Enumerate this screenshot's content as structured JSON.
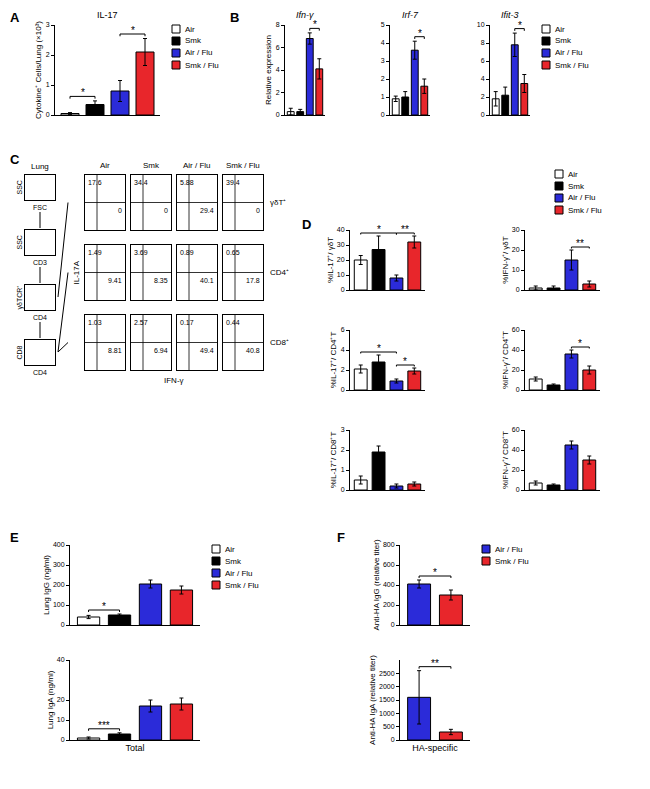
{
  "chart_data": [
    {
      "type": "bar",
      "panel_label": "A",
      "title": "IL-17",
      "y_label": "Cytokine⁺ Cells/Lung (×10³)",
      "categories": [
        "Air",
        "Smk",
        "Air / Flu",
        "Smk / Flu"
      ],
      "values": [
        0.05,
        0.35,
        0.8,
        2.1
      ],
      "errors": [
        0.03,
        0.12,
        0.35,
        0.45
      ],
      "colors": [
        "#ffffff",
        "#000000",
        "#2b2bd9",
        "#e8262b"
      ],
      "ylim": [
        0,
        3
      ],
      "yticks": [
        0,
        1,
        2,
        3
      ],
      "tick_labels": "y",
      "legend": "right",
      "significance": [
        {
          "from": 0,
          "to": 1,
          "text": "*"
        },
        {
          "from": 2,
          "to": 3,
          "text": "*"
        }
      ]
    },
    {
      "type": "bar",
      "panel_label": "B",
      "title": "Ifn-γ",
      "y_label": "Relative expression",
      "categories": [
        "Air",
        "Smk",
        "Air / Flu",
        "Smk / Flu"
      ],
      "values": [
        0.3,
        0.3,
        6.8,
        4.1
      ],
      "errors": [
        0.3,
        0.2,
        0.5,
        0.9
      ],
      "colors": [
        "#ffffff",
        "#000000",
        "#2b2bd9",
        "#e8262b"
      ],
      "ylim": [
        0,
        8
      ],
      "yticks": [
        0,
        2,
        4,
        6,
        8
      ],
      "tick_labels": "y",
      "significance": [
        {
          "from": 2,
          "to": 3,
          "text": "*"
        }
      ]
    },
    {
      "type": "bar",
      "title": "Irf-7",
      "categories": [
        "Air",
        "Smk",
        "Air / Flu",
        "Smk / Flu"
      ],
      "values": [
        0.9,
        1.0,
        3.6,
        1.6
      ],
      "errors": [
        0.15,
        0.3,
        0.5,
        0.4
      ],
      "colors": [
        "#ffffff",
        "#000000",
        "#2b2bd9",
        "#e8262b"
      ],
      "ylim": [
        0,
        5
      ],
      "yticks": [
        0,
        1,
        2,
        3,
        4,
        5
      ],
      "tick_labels": "y",
      "significance": [
        {
          "from": 2,
          "to": 3,
          "text": "*"
        }
      ]
    },
    {
      "type": "bar",
      "title": "Ifit-3",
      "categories": [
        "Air",
        "Smk",
        "Air / Flu",
        "Smk / Flu"
      ],
      "values": [
        1.8,
        2.2,
        7.8,
        3.5
      ],
      "errors": [
        0.8,
        0.9,
        1.3,
        1.0
      ],
      "colors": [
        "#ffffff",
        "#000000",
        "#2b2bd9",
        "#e8262b"
      ],
      "ylim": [
        0,
        10
      ],
      "yticks": [
        0,
        2,
        4,
        6,
        8,
        10
      ],
      "tick_labels": "y",
      "legend": "right",
      "significance": [
        {
          "from": 2,
          "to": 3,
          "text": "*"
        }
      ]
    },
    {
      "type": "flow_grid",
      "panel_label": "C",
      "columns": [
        "Air",
        "Smk",
        "Air / Flu",
        "Smk / Flu"
      ],
      "rows": [
        "γδT⁺",
        "CD4⁺",
        "CD8⁺"
      ],
      "x_label": "IFN-γ",
      "y_label": "IL-17A",
      "tick_labels": false,
      "cells": [
        [
          {
            "il17a": 17.6,
            "ifng": 0
          },
          {
            "il17a": 34.4,
            "ifng": 0
          },
          {
            "il17a": 5.88,
            "ifng": 29.4
          },
          {
            "il17a": 39.4,
            "ifng": 0
          }
        ],
        [
          {
            "il17a": 1.49,
            "ifng": 9.41
          },
          {
            "il17a": 3.69,
            "ifng": 8.35
          },
          {
            "il17a": 0.89,
            "ifng": 40.1
          },
          {
            "il17a": 0.65,
            "ifng": 17.8
          }
        ],
        [
          {
            "il17a": 1.03,
            "ifng": 8.81
          },
          {
            "il17a": 2.57,
            "ifng": 6.94
          },
          {
            "il17a": 0.17,
            "ifng": 49.4
          },
          {
            "il17a": 0.44,
            "ifng": 40.8
          }
        ]
      ],
      "gating": [
        {
          "title": "Lung",
          "x_label": "FSC",
          "y_label": "SSC"
        },
        {
          "x_label": "CD3",
          "y_label": "SSC"
        },
        {
          "x_label": "CD4",
          "y_label": "γδTCR⁺"
        },
        {
          "x_label": "CD4",
          "y_label": "CD8"
        }
      ]
    },
    {
      "type": "bar",
      "panel_label": "D",
      "y_label": "%IL-17⁺/ γδT",
      "categories": [
        "Air",
        "Smk",
        "Air / Flu",
        "Smk / Flu"
      ],
      "values": [
        20,
        27,
        8,
        32
      ],
      "errors": [
        3,
        9,
        2,
        4
      ],
      "colors": [
        "#ffffff",
        "#000000",
        "#2b2bd9",
        "#e8262b"
      ],
      "ylim": [
        0,
        40
      ],
      "yticks": [
        0,
        10,
        20,
        30,
        40
      ],
      "tick_labels": "y",
      "significance": [
        {
          "from": 0,
          "to": 2,
          "text": "*"
        },
        {
          "from": 2,
          "to": 3,
          "text": "**"
        }
      ]
    },
    {
      "type": "bar",
      "y_label": "%IFN-γ⁺/ γδT",
      "categories": [
        "Air",
        "Smk",
        "Air / Flu",
        "Smk / Flu"
      ],
      "values": [
        1,
        1,
        15,
        3
      ],
      "errors": [
        1,
        1,
        5,
        1.5
      ],
      "colors": [
        "#ffffff",
        "#000000",
        "#2b2bd9",
        "#e8262b"
      ],
      "ylim": [
        0,
        30
      ],
      "yticks": [
        0,
        10,
        20,
        30
      ],
      "tick_labels": "y",
      "legend": "top right",
      "significance": [
        {
          "from": 2,
          "to": 3,
          "text": "**"
        }
      ]
    },
    {
      "type": "bar",
      "y_label": "%IL-17⁺/ CD4⁺T",
      "categories": [
        "Air",
        "Smk",
        "Air / Flu",
        "Smk / Flu"
      ],
      "values": [
        2.1,
        2.8,
        0.9,
        1.9
      ],
      "errors": [
        0.4,
        0.7,
        0.2,
        0.3
      ],
      "colors": [
        "#ffffff",
        "#000000",
        "#2b2bd9",
        "#e8262b"
      ],
      "ylim": [
        0,
        6
      ],
      "yticks": [
        0,
        2,
        4,
        6
      ],
      "tick_labels": "y",
      "significance": [
        {
          "from": 0,
          "to": 2,
          "text": "*"
        },
        {
          "from": 2,
          "to": 3,
          "text": "*"
        }
      ]
    },
    {
      "type": "bar",
      "y_label": "%IFN-γ⁺/ CD4⁺T",
      "categories": [
        "Air",
        "Smk",
        "Air / Flu",
        "Smk / Flu"
      ],
      "values": [
        11,
        5,
        36,
        20
      ],
      "errors": [
        2,
        1,
        4,
        4
      ],
      "colors": [
        "#ffffff",
        "#000000",
        "#2b2bd9",
        "#e8262b"
      ],
      "ylim": [
        0,
        60
      ],
      "yticks": [
        0,
        20,
        40,
        60
      ],
      "tick_labels": "y",
      "significance": [
        {
          "from": 2,
          "to": 3,
          "text": "*"
        }
      ]
    },
    {
      "type": "bar",
      "y_label": "%IL-17⁺/ CD8⁺T",
      "categories": [
        "Air",
        "Smk",
        "Air / Flu",
        "Smk / Flu"
      ],
      "values": [
        0.5,
        1.9,
        0.2,
        0.3
      ],
      "errors": [
        0.2,
        0.3,
        0.1,
        0.1
      ],
      "colors": [
        "#ffffff",
        "#000000",
        "#2b2bd9",
        "#e8262b"
      ],
      "ylim": [
        0,
        3
      ],
      "yticks": [
        0,
        1,
        2,
        3
      ],
      "tick_labels": "y"
    },
    {
      "type": "bar",
      "y_label": "%IFN-γ⁺/ CD8⁺T",
      "categories": [
        "Air",
        "Smk",
        "Air / Flu",
        "Smk / Flu"
      ],
      "values": [
        7,
        5,
        45,
        30
      ],
      "errors": [
        2,
        1,
        4,
        4
      ],
      "colors": [
        "#ffffff",
        "#000000",
        "#2b2bd9",
        "#e8262b"
      ],
      "ylim": [
        0,
        60
      ],
      "yticks": [
        0,
        20,
        40,
        60
      ],
      "tick_labels": "y"
    },
    {
      "type": "bar",
      "panel_label": "E",
      "y_label": "Lung IgG (ng/ml)",
      "categories": [
        "Air",
        "Smk",
        "Air / Flu",
        "Smk / Flu"
      ],
      "values": [
        40,
        50,
        205,
        175
      ],
      "errors": [
        8,
        5,
        20,
        20
      ],
      "colors": [
        "#ffffff",
        "#000000",
        "#2b2bd9",
        "#e8262b"
      ],
      "ylim": [
        0,
        400
      ],
      "yticks": [
        0,
        100,
        200,
        300,
        400
      ],
      "tick_labels": "y",
      "legend": "right",
      "significance": [
        {
          "from": 0,
          "to": 1,
          "text": "*"
        }
      ]
    },
    {
      "type": "bar",
      "y_label": "Lung IgA (ng/ml)",
      "x_label": "Total",
      "categories": [
        "Air",
        "Smk",
        "Air / Flu",
        "Smk / Flu"
      ],
      "values": [
        1,
        3,
        17,
        18
      ],
      "errors": [
        0.5,
        0.6,
        3,
        3
      ],
      "colors": [
        "#ffffff",
        "#000000",
        "#2b2bd9",
        "#e8262b"
      ],
      "ylim": [
        0,
        40
      ],
      "yticks": [
        0,
        10,
        20,
        40
      ],
      "tick_labels": "y",
      "significance": [
        {
          "from": 0,
          "to": 1,
          "text": "***"
        }
      ]
    },
    {
      "type": "bar",
      "panel_label": "F",
      "y_label": "Anti-HA IgG (relative titer)",
      "categories": [
        "Air / Flu",
        "Smk / Flu"
      ],
      "values": [
        410,
        300
      ],
      "errors": [
        40,
        50
      ],
      "colors": [
        "#2b2bd9",
        "#e8262b"
      ],
      "ylim": [
        0,
        800
      ],
      "yticks": [
        0,
        200,
        400,
        600,
        800
      ],
      "tick_labels": "y",
      "legend": "right",
      "significance": [
        {
          "from": 0,
          "to": 1,
          "text": "*"
        }
      ]
    },
    {
      "type": "bar",
      "y_label": "Anti-HA IgA (relative titer)",
      "x_label": "HA-specific",
      "categories": [
        "Air / Flu",
        "Smk / Flu"
      ],
      "values": [
        1600,
        300
      ],
      "errors": [
        1000,
        100
      ],
      "colors": [
        "#2b2bd9",
        "#e8262b"
      ],
      "ylim": [
        0,
        3000
      ],
      "yticks": [
        0,
        500,
        1000,
        1500,
        2000,
        2500
      ],
      "tick_labels": "y",
      "significance": [
        {
          "from": 0,
          "to": 1,
          "text": "**"
        }
      ]
    }
  ]
}
